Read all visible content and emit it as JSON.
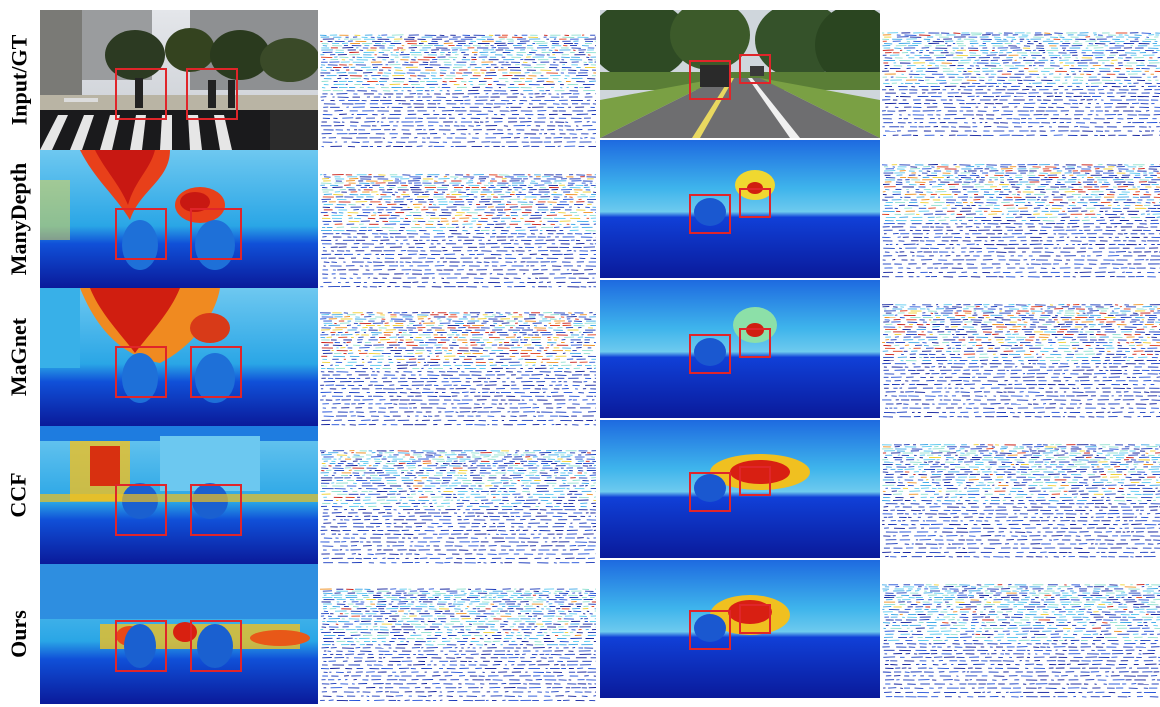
{
  "row_labels": [
    "Input/GT",
    "ManyDepth",
    "MaGnet",
    "CCF",
    "Ours"
  ],
  "colors": {
    "bbox": "#e0252a",
    "depth_far": "#0a1a9a",
    "depth_mid": "#1ea0e8",
    "depth_near": "#d81f12",
    "background": "#ffffff"
  },
  "panel_types": [
    "rgb-image",
    "depth-map",
    "error-map"
  ]
}
